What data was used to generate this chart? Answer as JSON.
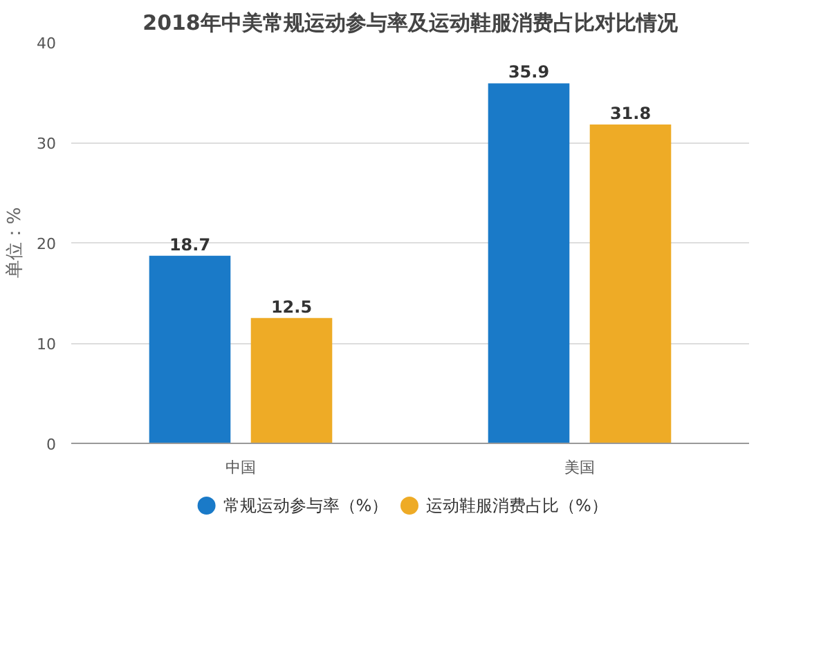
{
  "chart_data": {
    "type": "bar",
    "title": "2018年中美常规运动参与率及运动鞋服消费占比对比情况",
    "ylabel": "单位：%",
    "categories": [
      "中国",
      "美国"
    ],
    "series": [
      {
        "name": "常规运动参与率（%）",
        "color": "#1a7ac8",
        "values": [
          18.7,
          35.9
        ]
      },
      {
        "name": "运动鞋服消费占比（%）",
        "color": "#eeab26",
        "values": [
          12.5,
          31.8
        ]
      }
    ],
    "ylim": [
      0,
      40
    ],
    "yticks": [
      0,
      10,
      20,
      30,
      40
    ],
    "grid": "y",
    "legend": "bottom",
    "data_labels": true
  }
}
